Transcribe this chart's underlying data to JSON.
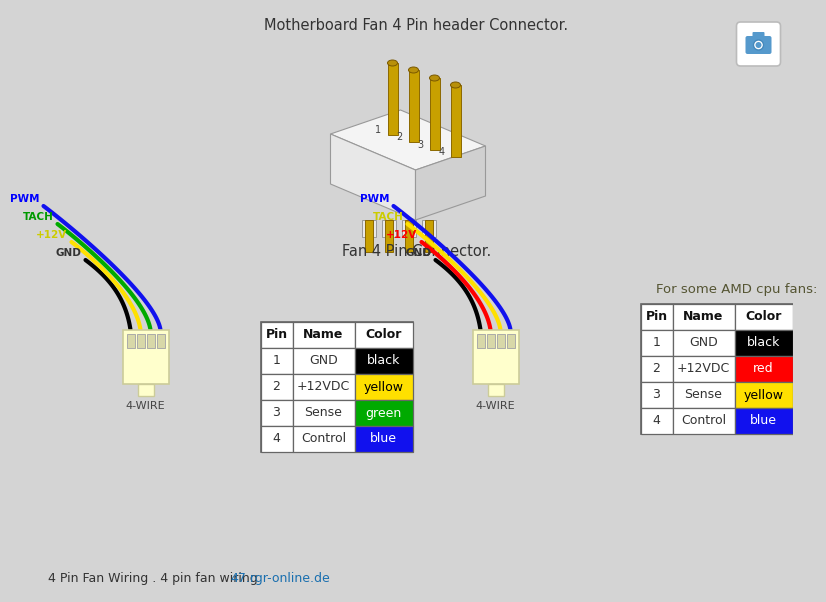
{
  "bg_color": "#d4d4d4",
  "title_top": "Motherboard Fan 4 Pin header Connector.",
  "title_mid": "Fan 4 Pin Connector.",
  "footer_text": "4 Pin Fan Wiring . 4 pin fan wiring ",
  "footer_link": "47.rgr-online.de",
  "table2_title": "For some AMD cpu fans:",
  "pin_names": [
    "GND",
    "+12VDC",
    "Sense",
    "Control"
  ],
  "pin_numbers": [
    1,
    2,
    3,
    4
  ],
  "table1_colors": [
    "#000000",
    "#FFE000",
    "#00AA00",
    "#1111EE"
  ],
  "table1_color_labels": [
    "black",
    "yellow",
    "green",
    "blue"
  ],
  "table1_text_colors": [
    "#FFFFFF",
    "#000000",
    "#FFFFFF",
    "#FFFFFF"
  ],
  "table2_colors": [
    "#000000",
    "#FF0000",
    "#FFE000",
    "#1111EE"
  ],
  "table2_color_labels": [
    "black",
    "red",
    "yellow",
    "blue"
  ],
  "table2_text_colors": [
    "#FFFFFF",
    "#FFFFFF",
    "#000000",
    "#FFFFFF"
  ],
  "connector_color": "#FFFFCC",
  "connector_edge": "#CCCC99",
  "pin_color": "#C8A000",
  "wire1_colors": [
    "#000000",
    "#FFE000",
    "#00AA00",
    "#1111EE"
  ],
  "wire1_labels": [
    "GND",
    "+12V",
    "TACH",
    "PWM"
  ],
  "wire1_label_colors": [
    "#333333",
    "#CCCC00",
    "#009900",
    "#0000FF"
  ],
  "wire2_colors": [
    "#000000",
    "#FF0000",
    "#FFE000",
    "#1111EE"
  ],
  "wire2_labels": [
    "GND",
    "+12V",
    "TACH",
    "PWM"
  ],
  "wire2_label_colors": [
    "#333333",
    "#FF0000",
    "#CCCC00",
    "#0000FF"
  ]
}
